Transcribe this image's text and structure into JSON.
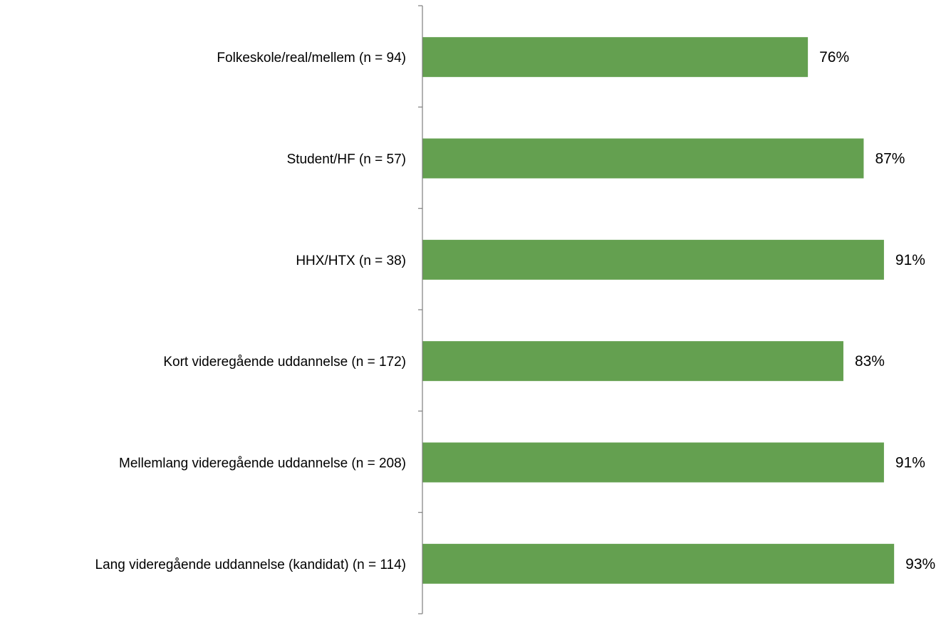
{
  "chart_data": {
    "type": "bar",
    "orientation": "horizontal",
    "categories": [
      "Folkeskole/real/mellem (n = 94)",
      "Student/HF (n = 57)",
      "HHX/HTX (n = 38)",
      "Kort videregående uddannelse (n = 172)",
      "Mellemlang videregående uddannelse (n = 208)",
      "Lang videregående uddannelse (kandidat) (n = 114)"
    ],
    "values": [
      76,
      87,
      91,
      83,
      91,
      93
    ],
    "value_labels": [
      "76%",
      "87%",
      "91%",
      "83%",
      "91%",
      "93%"
    ],
    "unit": "%",
    "xlim": [
      0,
      100
    ],
    "title": "",
    "xlabel": "",
    "ylabel": "",
    "grid": false,
    "legend": "none",
    "bar_color": "#64a050",
    "axis_color": "#7f7f7f"
  }
}
